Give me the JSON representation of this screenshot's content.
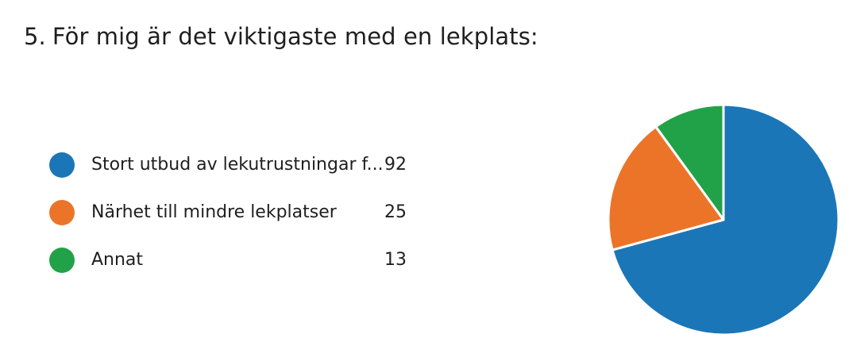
{
  "question": {
    "number": "5.",
    "text": "För mig är det viktigaste med en lekplats:"
  },
  "legend": {
    "items": [
      {
        "label": "Stort utbud av lekutrustningar f...",
        "count": "92",
        "color": "#1b76b7"
      },
      {
        "label": "Närhet till mindre lekplatser",
        "count": "25",
        "color": "#ec7428"
      },
      {
        "label": "Annat",
        "count": "13",
        "color": "#22a248"
      }
    ]
  },
  "chart_data": {
    "type": "pie",
    "title": "För mig är det viktigaste med en lekplats:",
    "categories": [
      "Stort utbud av lekutrustningar f...",
      "Närhet till mindre lekplatser",
      "Annat"
    ],
    "values": [
      92,
      25,
      13
    ],
    "colors": [
      "#1b76b7",
      "#ec7428",
      "#22a248"
    ],
    "legend": "left"
  }
}
